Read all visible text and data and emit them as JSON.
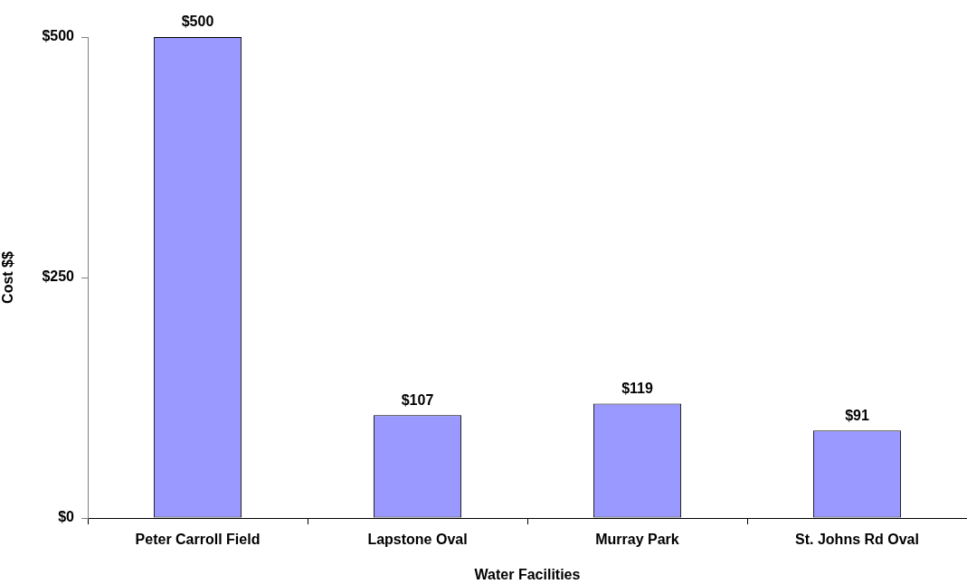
{
  "chart_data": {
    "type": "bar",
    "xlabel": "Water Facilities",
    "ylabel": "Cost $$",
    "categories": [
      "Peter Carroll Field",
      "Lapstone Oval",
      "Murray Park",
      "St. Johns Rd Oval"
    ],
    "values": [
      500,
      107,
      119,
      91
    ],
    "color": "#9999ff",
    "value_labels": [
      "$500",
      "$107",
      "$119",
      "$91"
    ],
    "ylim": [
      0,
      500
    ],
    "yticks": [
      {
        "value": 0,
        "label": "$0"
      },
      {
        "value": 250,
        "label": "$250"
      },
      {
        "value": 500,
        "label": "$500"
      }
    ]
  }
}
